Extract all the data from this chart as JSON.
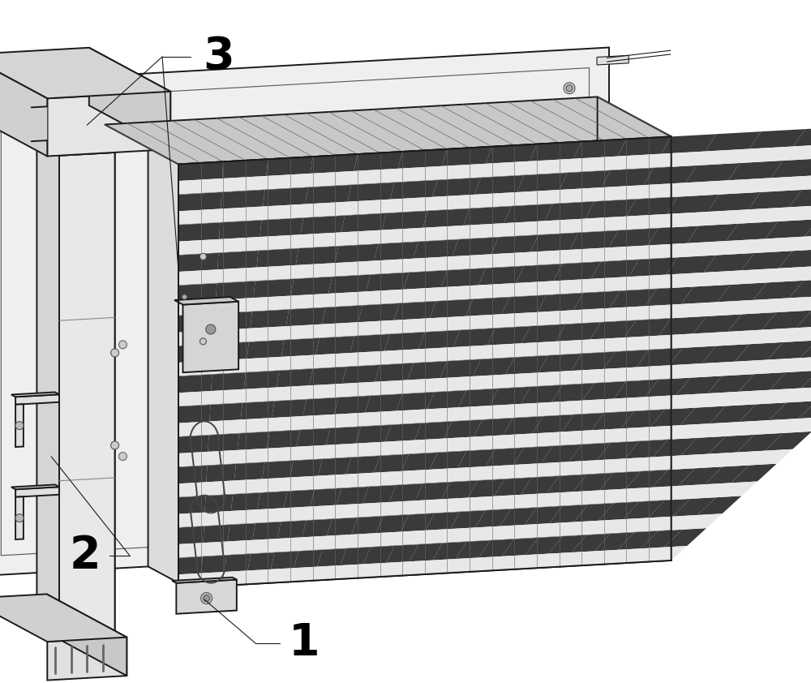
{
  "bg_color": "#ffffff",
  "lc": "#1a1a1a",
  "lc_med": "#555555",
  "lc_light": "#888888",
  "fill_light": "#f2f2f2",
  "fill_mid": "#e0e0e0",
  "fill_dark": "#c8c8c8",
  "fill_darker": "#aaaaaa",
  "fill_darkest": "#444444",
  "label_1": "1",
  "label_2": "2",
  "label_3": "3",
  "label_fontsize": 40,
  "figsize": [
    10.0,
    8.42
  ],
  "dpi": 100
}
